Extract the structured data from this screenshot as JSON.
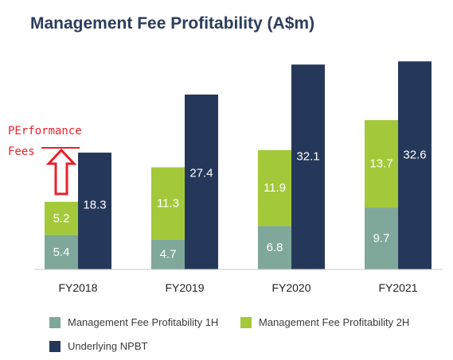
{
  "title": "Management Fee Profitability (A$m)",
  "annotation": {
    "line1": "PErformance",
    "line2": "Fees",
    "color": "#e8212a"
  },
  "colors": {
    "h1": "#7fa89a",
    "h2": "#a3c93a",
    "npbt": "#26385a",
    "title": "#2b3d5c"
  },
  "chart_data": {
    "type": "bar",
    "stacked_with_adjacent": true,
    "categories": [
      "FY2018",
      "FY2019",
      "FY2020",
      "FY2021"
    ],
    "series": [
      {
        "name": "Management Fee Profitability 1H",
        "values": [
          5.4,
          4.7,
          6.8,
          9.7
        ],
        "stack": "mgmt"
      },
      {
        "name": "Management Fee Profitability 2H",
        "values": [
          5.2,
          11.3,
          11.9,
          13.7
        ],
        "stack": "mgmt"
      },
      {
        "name": "Underlying NPBT",
        "values": [
          18.3,
          27.4,
          32.1,
          32.6
        ],
        "stack": "npbt"
      }
    ],
    "ylim": [
      0,
      33.5
    ],
    "grid": false,
    "legend_position": "bottom"
  },
  "legend": [
    {
      "label": "Management Fee Profitability 1H",
      "color": "#7fa89a"
    },
    {
      "label": "Management Fee Profitability 2H",
      "color": "#a3c93a"
    },
    {
      "label": "Underlying NPBT",
      "color": "#26385a"
    }
  ]
}
